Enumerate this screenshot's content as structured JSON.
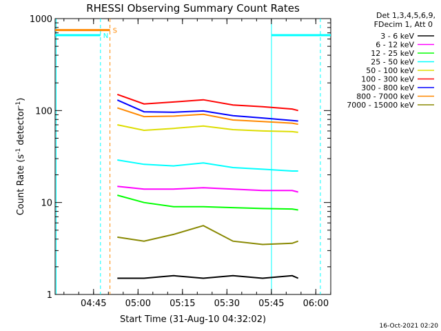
{
  "chart_data": {
    "type": "line",
    "title": "RHESSI Observing Summary Count Rates",
    "xlabel": "Start Time (31-Aug-10 04:32:02)",
    "ylabel_main": "Count Rate (s",
    "ylabel_sup1": "-1",
    "ylabel_mid": " detector",
    "ylabel_sup2": "-1",
    "ylabel_end": ")",
    "y_scale": "log",
    "ylim": [
      1,
      1000
    ],
    "xlim_minutes": [
      0,
      93
    ],
    "x_ticks": [
      {
        "label": "04:45",
        "t": 12.97
      },
      {
        "label": "05:00",
        "t": 27.97
      },
      {
        "label": "05:15",
        "t": 42.97
      },
      {
        "label": "05:30",
        "t": 57.97
      },
      {
        "label": "05:45",
        "t": 72.97
      },
      {
        "label": "06:00",
        "t": 87.97
      }
    ],
    "y_ticks": [
      {
        "label": "1",
        "v": 1
      },
      {
        "label": "10",
        "v": 10
      },
      {
        "label": "100",
        "v": 100
      },
      {
        "label": "1000",
        "v": 1000
      }
    ],
    "legend": {
      "header_line1": "Det 1,3,4,5,6,9,",
      "header_line2": "FDecim 1, Att 0",
      "placement": "right"
    },
    "series": [
      {
        "name": "3 - 6 keV",
        "color": "#000000",
        "t": [
          21,
          30,
          40,
          50,
          60,
          70,
          80,
          82
        ],
        "y": [
          1.5,
          1.5,
          1.6,
          1.5,
          1.6,
          1.5,
          1.6,
          1.5
        ]
      },
      {
        "name": "6 - 12 keV",
        "color": "#ff00ff",
        "t": [
          21,
          30,
          40,
          50,
          60,
          70,
          80,
          82
        ],
        "y": [
          15,
          14,
          14,
          14.5,
          14,
          13.5,
          13.5,
          13
        ]
      },
      {
        "name": "12 - 25 keV",
        "color": "#00ff00",
        "t": [
          21,
          30,
          40,
          50,
          60,
          70,
          80,
          82
        ],
        "y": [
          12,
          10,
          9,
          9,
          8.8,
          8.6,
          8.5,
          8.3
        ]
      },
      {
        "name": "25 - 50 keV",
        "color": "#00ffff",
        "t": [
          21,
          30,
          40,
          50,
          60,
          70,
          80,
          82
        ],
        "y": [
          29,
          26,
          25,
          27,
          24,
          23,
          22,
          22
        ]
      },
      {
        "name": "50 - 100 keV",
        "color": "#dddd00",
        "t": [
          21,
          30,
          40,
          50,
          60,
          70,
          80,
          82
        ],
        "y": [
          70,
          61,
          64,
          68,
          62,
          60,
          59,
          58
        ]
      },
      {
        "name": "100 - 300 keV",
        "color": "#ff0000",
        "t": [
          21,
          30,
          40,
          50,
          60,
          70,
          80,
          82
        ],
        "y": [
          150,
          118,
          124,
          131,
          115,
          110,
          104,
          100
        ]
      },
      {
        "name": "300 - 800 keV",
        "color": "#0000ff",
        "t": [
          21,
          30,
          40,
          50,
          60,
          70,
          80,
          82
        ],
        "y": [
          130,
          97,
          96,
          99,
          88,
          83,
          78,
          77
        ]
      },
      {
        "name": "800 - 7000 keV",
        "color": "#ff8800",
        "t": [
          21,
          30,
          40,
          50,
          60,
          70,
          80,
          82
        ],
        "y": [
          107,
          86,
          87,
          91,
          79,
          76,
          73,
          71
        ]
      },
      {
        "name": "7000 - 15000 keV",
        "color": "#888800",
        "t": [
          21,
          30,
          40,
          50,
          60,
          70,
          80,
          82
        ],
        "y": [
          4.2,
          3.8,
          4.5,
          5.6,
          3.8,
          3.5,
          3.6,
          3.8
        ]
      }
    ],
    "flags": [
      {
        "label": "S",
        "color": "#ff8800",
        "v": 750,
        "segments": [
          [
            0,
            18.5
          ]
        ]
      },
      {
        "label": "N",
        "color": "#00ffff",
        "v": 660,
        "segments": [
          [
            0,
            15.3
          ],
          [
            73,
            93
          ]
        ]
      }
    ],
    "vlines": [
      {
        "t": 0,
        "color": "#00ffff",
        "style": "solid"
      },
      {
        "t": 15.3,
        "color": "#00ffff",
        "style": "dashed"
      },
      {
        "t": 18.5,
        "color": "#ff8800",
        "style": "dashed"
      },
      {
        "t": 73,
        "color": "#00ffff",
        "style": "solid"
      },
      {
        "t": 89.5,
        "color": "#00ffff",
        "style": "dashed"
      }
    ]
  },
  "footer": {
    "timestamp": "16-Oct-2021 02:20"
  }
}
